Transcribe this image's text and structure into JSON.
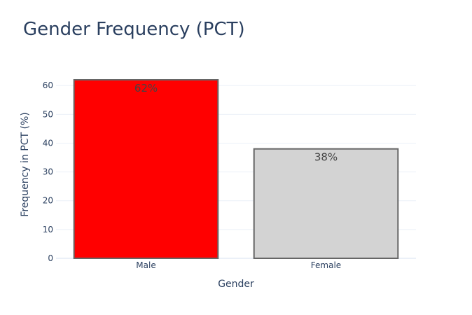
{
  "chart_data": {
    "type": "bar",
    "title": "Gender Frequency (PCT)",
    "xlabel": "Gender",
    "ylabel": "Frequency in PCT (%)",
    "categories": [
      "Male",
      "Female"
    ],
    "values": [
      62,
      38
    ],
    "data_labels": [
      "62%",
      "38%"
    ],
    "colors": [
      "#ff0000",
      "#d3d3d3"
    ],
    "bar_outline": "#666666",
    "ylim": [
      0,
      62
    ],
    "yticks": [
      0,
      10,
      20,
      30,
      40,
      50,
      60
    ],
    "grid": true,
    "legend": "none"
  }
}
